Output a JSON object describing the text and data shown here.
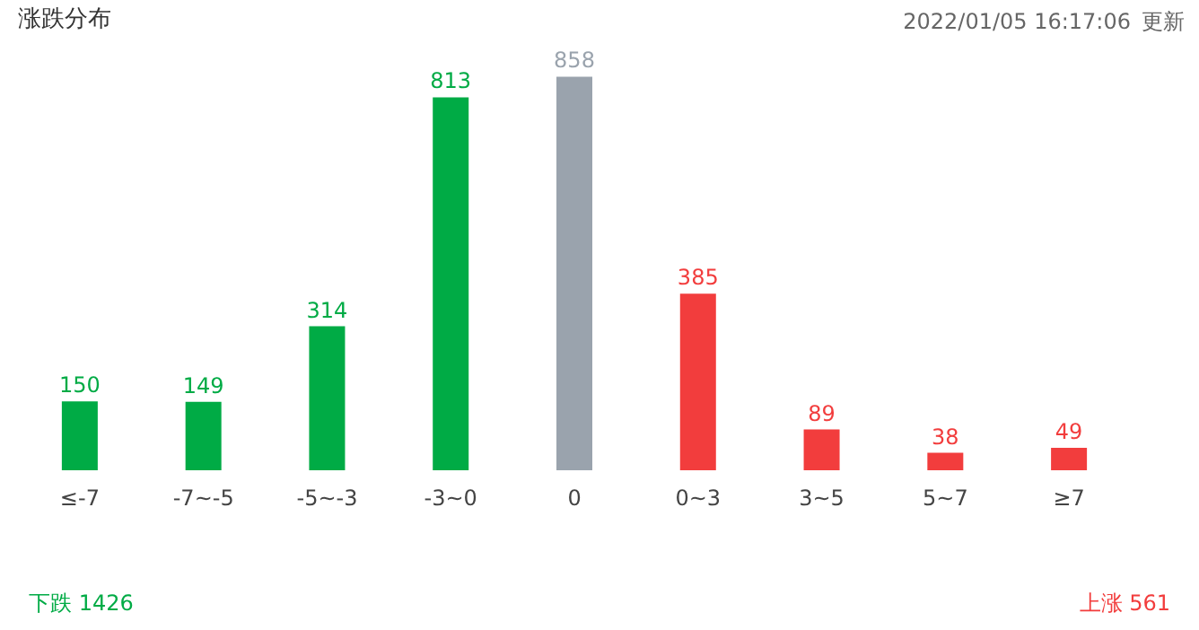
{
  "chart_data": {
    "type": "bar",
    "title": "涨跌分布",
    "categories": [
      "≤-7",
      "-7~-5",
      "-5~-3",
      "-3~0",
      "0",
      "0~3",
      "3~5",
      "5~7",
      "≥7"
    ],
    "values": [
      150,
      149,
      314,
      813,
      858,
      385,
      89,
      38,
      49
    ],
    "colors": [
      "#00ab45",
      "#00ab45",
      "#00ab45",
      "#00ab45",
      "#9aa3ad",
      "#f23d3d",
      "#f23d3d",
      "#f23d3d",
      "#f23d3d"
    ],
    "data_labels": true,
    "grid": false,
    "annotations": [
      "2022/01/05 16:17:06",
      "更新",
      "下跌 1426",
      "上涨 561"
    ]
  }
}
